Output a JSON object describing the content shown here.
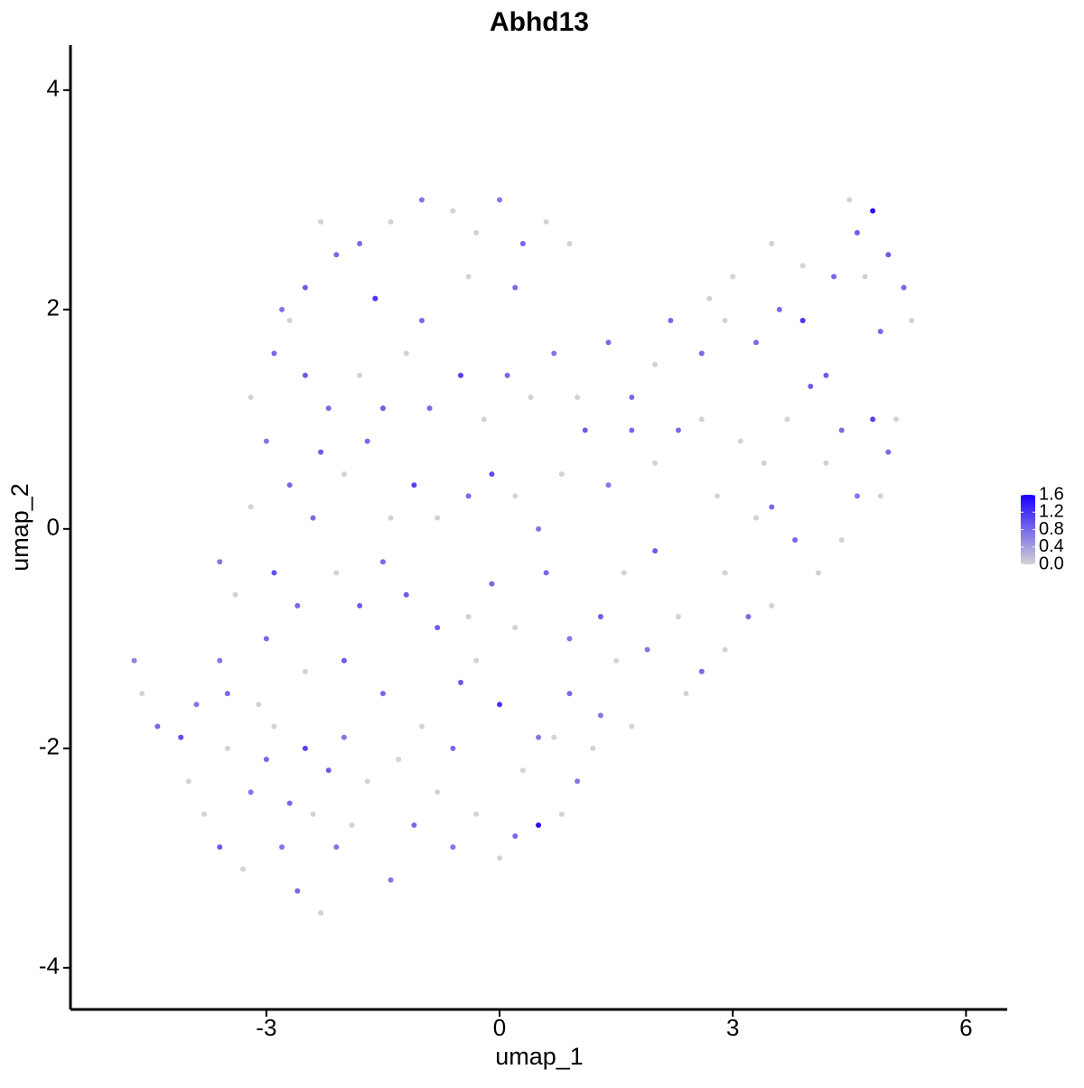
{
  "chart_data": {
    "type": "scatter",
    "title": "Abhd13",
    "x_label": "umap_1",
    "y_label": "umap_2",
    "xlim": [
      -5.52,
      6.53
    ],
    "ylim": [
      -4.38,
      4.41
    ],
    "xticks": [
      -3,
      0,
      3,
      6
    ],
    "yticks": [
      -4,
      -2,
      0,
      2,
      4
    ],
    "color_low": "#d3d3d3",
    "color_high": "#1a00ff",
    "clim": [
      0,
      1.6
    ],
    "colorbar_ticks": [
      {
        "value": 0,
        "label": "0.0"
      },
      {
        "value": 0.4,
        "label": "0.4"
      },
      {
        "value": 0.8,
        "label": "0.8"
      },
      {
        "value": 1.2,
        "label": "1.2"
      },
      {
        "value": 1.6,
        "label": "1.6"
      }
    ],
    "x": [
      -4.7,
      -4.6,
      -4.4,
      -4.1,
      -4.0,
      -3.8,
      -3.9,
      -3.6,
      -3.5,
      -3.6,
      -3.3,
      -3.2,
      -3.0,
      -2.9,
      -2.8,
      -2.6,
      -2.5,
      -2.4,
      -2.3,
      -2.2,
      -2.1,
      -1.9,
      -1.7,
      -1.4,
      -1.1,
      -0.8,
      -0.6,
      -0.3,
      0.0,
      0.2,
      0.5,
      0.8,
      1.0,
      1.2,
      1.3,
      0.9,
      0.5,
      0.0,
      -0.5,
      -1.0,
      -1.5,
      -2.0,
      -2.5,
      -3.0,
      -3.4,
      -3.6,
      -3.2,
      -2.9,
      -2.6,
      -2.4,
      -2.1,
      -1.8,
      -1.5,
      -1.2,
      -0.8,
      -0.4,
      -0.1,
      0.2,
      0.6,
      0.9,
      1.3,
      1.6,
      1.9,
      2.0,
      2.3,
      2.6,
      2.9,
      3.2,
      3.5,
      3.8,
      4.1,
      4.4,
      4.6,
      4.9,
      5.0,
      5.1,
      4.8,
      4.4,
      4.0,
      3.7,
      3.4,
      3.5,
      3.1,
      2.8,
      2.6,
      2.3,
      2.0,
      1.7,
      1.4,
      1.1,
      0.8,
      0.5,
      0.2,
      -0.1,
      -0.4,
      -0.8,
      -1.1,
      -1.4,
      -1.7,
      -2.0,
      -2.3,
      -2.7,
      -3.0,
      -3.2,
      -2.9,
      -2.5,
      -2.2,
      -1.8,
      -1.5,
      -1.2,
      -0.9,
      -0.5,
      -0.2,
      0.1,
      0.4,
      0.7,
      1.0,
      1.4,
      1.7,
      2.0,
      2.2,
      2.6,
      2.9,
      3.3,
      3.6,
      3.9,
      4.2,
      4.3,
      4.6,
      4.5,
      4.8,
      5.0,
      5.2,
      5.3,
      4.9,
      4.7,
      3.9,
      3.5,
      3.0,
      2.7,
      0.6,
      0.3,
      0.0,
      -0.3,
      -0.6,
      -1.0,
      -1.4,
      -1.8,
      -2.1,
      -2.3,
      -2.5,
      -2.7,
      -2.8,
      -1.6,
      -1.0,
      -0.4,
      0.2,
      0.9,
      -3.5,
      -3.1,
      -2.7,
      -2.0,
      -1.3,
      -0.6,
      -0.3,
      0.3,
      0.7,
      1.5,
      2.4,
      1.7,
      2.9,
      3.3,
      4.2
    ],
    "y": [
      -1.2,
      -1.5,
      -1.8,
      -1.9,
      -2.3,
      -2.6,
      -1.6,
      -1.2,
      -2.0,
      -2.9,
      -3.1,
      -2.4,
      -2.1,
      -1.8,
      -2.9,
      -3.3,
      -2.0,
      -2.6,
      -3.5,
      -2.2,
      -2.9,
      -2.7,
      -2.3,
      -3.2,
      -2.7,
      -2.4,
      -2.9,
      -2.6,
      -3.0,
      -2.8,
      -2.7,
      -2.6,
      -2.3,
      -2.0,
      -1.7,
      -1.5,
      -1.9,
      -1.6,
      -1.4,
      -1.8,
      -1.5,
      -1.2,
      -1.3,
      -1.0,
      -0.6,
      -0.3,
      0.2,
      -0.4,
      -0.7,
      0.1,
      -0.4,
      -0.7,
      -0.3,
      -0.6,
      -0.9,
      -0.8,
      -0.5,
      -0.9,
      -0.4,
      -1.0,
      -0.8,
      -0.4,
      -1.1,
      -0.2,
      -0.8,
      -1.3,
      -1.1,
      -0.8,
      -0.7,
      -0.1,
      -0.4,
      -0.1,
      0.3,
      0.3,
      0.7,
      1.0,
      1.0,
      0.9,
      1.3,
      1.0,
      0.6,
      0.2,
      0.8,
      0.3,
      1.0,
      0.9,
      0.6,
      0.9,
      0.4,
      0.9,
      0.5,
      0.0,
      0.3,
      0.5,
      0.3,
      0.1,
      0.4,
      0.1,
      0.8,
      0.5,
      0.7,
      0.4,
      0.8,
      1.2,
      1.6,
      1.4,
      1.1,
      1.4,
      1.1,
      1.6,
      1.1,
      1.4,
      1.0,
      1.4,
      1.2,
      1.6,
      1.2,
      1.7,
      1.2,
      1.5,
      1.9,
      1.6,
      1.9,
      1.7,
      2.0,
      1.9,
      1.4,
      2.3,
      2.7,
      3.0,
      2.9,
      2.5,
      2.2,
      1.9,
      1.8,
      2.3,
      2.4,
      2.6,
      2.3,
      2.1,
      2.8,
      2.6,
      3.0,
      2.7,
      2.9,
      3.0,
      2.8,
      2.6,
      2.5,
      2.8,
      2.2,
      1.9,
      2.0,
      2.1,
      1.9,
      2.3,
      2.2,
      2.6,
      -1.5,
      -1.6,
      -2.5,
      -1.9,
      -2.1,
      -2.0,
      -1.2,
      -2.2,
      -1.9,
      -1.2,
      -1.5,
      -1.8,
      -0.4,
      0.1,
      0.6
    ],
    "values": [
      0.6,
      0,
      0.8,
      1.0,
      0,
      0,
      0.7,
      0.7,
      0,
      0.9,
      0,
      0.7,
      0.8,
      0,
      0.7,
      0.8,
      1.1,
      0,
      0,
      0.9,
      0.7,
      0,
      0,
      0.7,
      0.8,
      0,
      0.7,
      0,
      0,
      0.8,
      1.5,
      0,
      0.7,
      0,
      0.7,
      0.8,
      0.7,
      1.2,
      0.9,
      0,
      0.8,
      0.9,
      0,
      0.8,
      0,
      0.7,
      0,
      1.0,
      0.8,
      0.8,
      0,
      0.9,
      0.8,
      0.9,
      0.9,
      0,
      0.8,
      0,
      0.8,
      0.7,
      0.9,
      0,
      0.7,
      0.9,
      0,
      0.8,
      0,
      0.8,
      0,
      0.8,
      0,
      0,
      0.7,
      0,
      0.8,
      0,
      1.1,
      0.8,
      0.9,
      0,
      0,
      0.8,
      0,
      0,
      0,
      0.8,
      0,
      0.8,
      0.7,
      0.9,
      0,
      0.7,
      0,
      1.0,
      0.8,
      0,
      1.1,
      0,
      0.8,
      0,
      0.9,
      0.8,
      0.7,
      0,
      0.8,
      0.9,
      0.8,
      0,
      0.9,
      0,
      0.8,
      1.1,
      0,
      0.8,
      0,
      0.7,
      0,
      0.8,
      0.8,
      0,
      0.8,
      0.8,
      0,
      0.8,
      0.8,
      1.2,
      0.9,
      0.8,
      0.9,
      0,
      1.5,
      0.9,
      0.8,
      0,
      0.8,
      0,
      0,
      0,
      0,
      0,
      0,
      0.8,
      0.7,
      0,
      0,
      0.7,
      0,
      0.8,
      0.8,
      0,
      0.9,
      0,
      0.7,
      1.2,
      0.8,
      0,
      0.8,
      0,
      0.8,
      0,
      0.8,
      0.7,
      0,
      0.8,
      0,
      0,
      0,
      0,
      0,
      0,
      0,
      0,
      0
    ]
  }
}
